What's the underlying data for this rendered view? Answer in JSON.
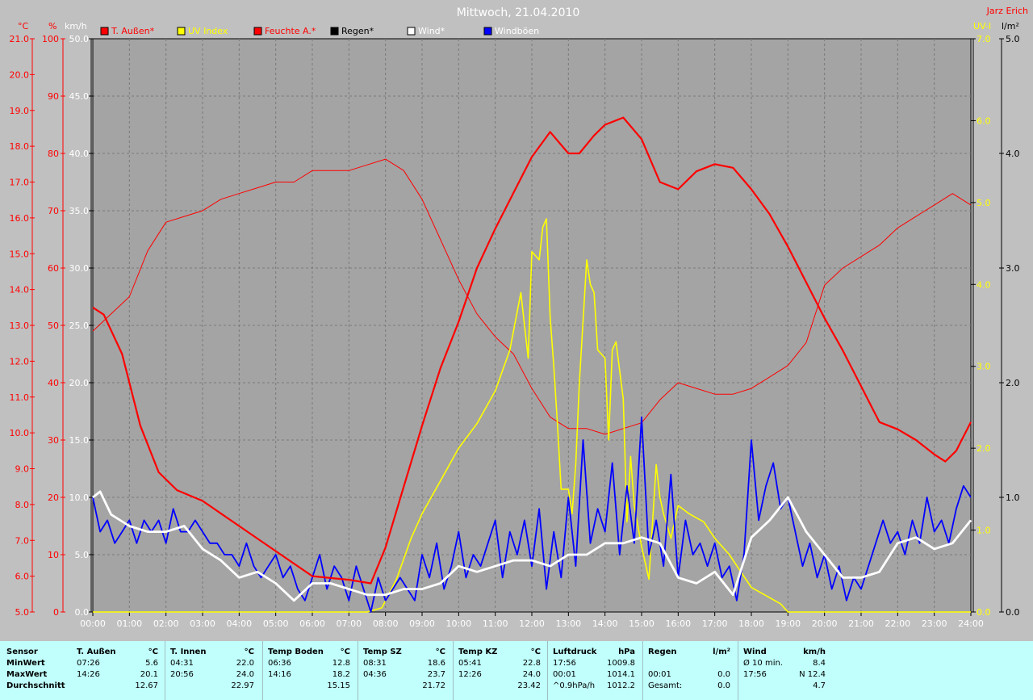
{
  "title": "Mittwoch, 21.04.2010",
  "author": "Jarz Erich",
  "units": {
    "temp": "°C",
    "percent": "%",
    "kmh": "km/h",
    "uvi": "UV-I",
    "lm2": "l/m²"
  },
  "legend": [
    {
      "label": "T. Außen*",
      "color": "#ff0000",
      "text_color": "#ff0000"
    },
    {
      "label": "UV Index",
      "color": "#ffff00",
      "text_color": "#ffff00"
    },
    {
      "label": "Feuchte A.*",
      "color": "#ff0000",
      "text_color": "#ff0000"
    },
    {
      "label": "Regen*",
      "color": "#000000",
      "text_color": "#000000"
    },
    {
      "label": "Wind*",
      "color": "#ffffff",
      "text_color": "#ffffff"
    },
    {
      "label": "Windböen",
      "color": "#0000ff",
      "text_color": "#ffffff"
    }
  ],
  "axes": {
    "temp_ticks": [
      "21.0",
      "20.0",
      "19.0",
      "18.0",
      "17.0",
      "16.0",
      "15.0",
      "14.0",
      "13.0",
      "12.0",
      "11.0",
      "10.0",
      "9.0",
      "8.0",
      "7.0",
      "6.0",
      "5.0"
    ],
    "pct_ticks": [
      "100",
      "90",
      "80",
      "70",
      "60",
      "50",
      "40",
      "30",
      "20",
      "10",
      "0"
    ],
    "kmh_ticks": [
      "50.0",
      "45.0",
      "40.0",
      "35.0",
      "30.0",
      "25.0",
      "20.0",
      "15.0",
      "10.0",
      "5.0",
      "0.0"
    ],
    "uvi_ticks": [
      "7.0",
      "6.0",
      "5.0",
      "4.0",
      "3.0",
      "2.0",
      "1.0",
      "0.0"
    ],
    "rain_ticks": [
      "5.0",
      "4.0",
      "3.0",
      "2.0",
      "1.0",
      "0.0"
    ],
    "x_ticks": [
      "00:00",
      "01:00",
      "02:00",
      "03:00",
      "04:00",
      "05:00",
      "06:00",
      "07:00",
      "08:00",
      "09:00",
      "10:00",
      "11:00",
      "12:00",
      "13:00",
      "14:00",
      "15:00",
      "16:00",
      "17:00",
      "18:00",
      "19:00",
      "20:00",
      "21:00",
      "22:00",
      "23:00",
      "24:00"
    ]
  },
  "colors": {
    "bg": "#c0c0c0",
    "plot_bg": "#a4a4a4",
    "grid": "#7a7a7a",
    "temp": "#ff0000",
    "hum": "#ff0000",
    "uv": "#ffff00",
    "wind": "#ffffff",
    "gust": "#0000ff",
    "stats_bg": "#c0fffc"
  },
  "chart_data": {
    "type": "line",
    "title": "Mittwoch, 21.04.2010",
    "xlabel": "",
    "x_range": [
      0,
      24
    ],
    "grid": true,
    "legend_position": "top",
    "series": [
      {
        "name": "T. Außen*",
        "axis": "°C",
        "ylim": [
          5,
          21
        ],
        "x": [
          0,
          0.3,
          0.8,
          1.3,
          1.8,
          2.3,
          3,
          4,
          5,
          6,
          7,
          7.6,
          8,
          8.5,
          9,
          9.5,
          10,
          10.5,
          11,
          11.5,
          12,
          12.5,
          13,
          13.3,
          13.7,
          14,
          14.5,
          15,
          15.5,
          16,
          16.5,
          17,
          17.5,
          18,
          18.5,
          19,
          19.5,
          20,
          20.5,
          21,
          21.5,
          22,
          22.5,
          23,
          23.3,
          23.6,
          24
        ],
        "values": [
          13.5,
          13.3,
          12.2,
          10.2,
          8.9,
          8.4,
          8.1,
          7.4,
          6.7,
          6.0,
          5.9,
          5.8,
          6.8,
          8.5,
          10.2,
          11.8,
          13.1,
          14.6,
          15.7,
          16.7,
          17.7,
          18.4,
          17.8,
          17.8,
          18.3,
          18.6,
          18.8,
          18.2,
          17.0,
          16.8,
          17.3,
          17.5,
          17.4,
          16.8,
          16.1,
          15.2,
          14.2,
          13.2,
          12.3,
          11.3,
          10.3,
          10.1,
          9.8,
          9.4,
          9.2,
          9.5,
          10.3
        ]
      },
      {
        "name": "Feuchte A.*",
        "axis": "%",
        "ylim": [
          0,
          100
        ],
        "x": [
          0,
          0.5,
          1,
          1.5,
          2,
          2.5,
          3,
          3.5,
          4,
          4.5,
          5,
          5.5,
          6,
          6.5,
          7,
          7.5,
          8,
          8.5,
          9,
          9.5,
          10,
          10.5,
          11,
          11.5,
          12,
          12.5,
          13,
          13.5,
          14,
          14.5,
          15,
          15.5,
          16,
          16.5,
          17,
          17.5,
          18,
          18.5,
          19,
          19.5,
          20,
          20.5,
          21,
          21.5,
          22,
          22.5,
          23,
          23.5,
          24
        ],
        "values": [
          49,
          52,
          55,
          63,
          68,
          69,
          70,
          72,
          73,
          74,
          75,
          75,
          77,
          77,
          77,
          78,
          79,
          77,
          72,
          65,
          58,
          52,
          48,
          45,
          39,
          34,
          32,
          32,
          31,
          32,
          33,
          37,
          40,
          39,
          38,
          38,
          39,
          41,
          43,
          47,
          57,
          60,
          62,
          64,
          67,
          69,
          71,
          73,
          71
        ]
      },
      {
        "name": "UV Index",
        "axis": "UV-I",
        "ylim": [
          0,
          7
        ],
        "x": [
          0,
          7.5,
          7.9,
          8.3,
          8.7,
          9,
          9.5,
          10,
          10.5,
          11,
          11.4,
          11.7,
          11.9,
          12,
          12.2,
          12.3,
          12.4,
          12.5,
          12.6,
          12.7,
          12.8,
          13,
          13.1,
          13.2,
          13.3,
          13.5,
          13.6,
          13.7,
          13.8,
          14,
          14.1,
          14.2,
          14.3,
          14.5,
          14.6,
          14.7,
          14.8,
          15,
          15.2,
          15.4,
          15.5,
          15.6,
          15.8,
          16,
          16.3,
          16.7,
          17,
          17.4,
          17.7,
          18,
          18.4,
          18.8,
          19,
          24
        ],
        "values": [
          0,
          0,
          0.05,
          0.4,
          0.9,
          1.2,
          1.6,
          2.0,
          2.3,
          2.7,
          3.2,
          3.9,
          3.1,
          4.4,
          4.3,
          4.7,
          4.8,
          3.6,
          3.0,
          2.3,
          1.5,
          1.5,
          1.2,
          1.8,
          2.8,
          4.3,
          4.0,
          3.9,
          3.2,
          3.1,
          2.1,
          3.2,
          3.3,
          2.6,
          1.1,
          1.9,
          1.3,
          0.8,
          0.4,
          1.8,
          1.4,
          1.2,
          0.9,
          1.3,
          1.2,
          1.1,
          0.9,
          0.7,
          0.5,
          0.3,
          0.2,
          0.1,
          0,
          0
        ]
      },
      {
        "name": "Wind*",
        "axis": "km/h",
        "ylim": [
          0,
          50
        ],
        "x": [
          0,
          0.2,
          0.5,
          1,
          1.5,
          2,
          2.5,
          3,
          3.5,
          4,
          4.5,
          5,
          5.5,
          6,
          6.5,
          7,
          7.5,
          8,
          8.5,
          9,
          9.5,
          10,
          10.5,
          11,
          11.5,
          12,
          12.5,
          13,
          13.5,
          14,
          14.5,
          15,
          15.5,
          16,
          16.5,
          17,
          17.5,
          18,
          18.5,
          19,
          19.5,
          20,
          20.5,
          21,
          21.5,
          22,
          22.5,
          23,
          23.5,
          24
        ],
        "values": [
          10.0,
          10.5,
          8.5,
          7.5,
          7.0,
          7.0,
          7.5,
          5.5,
          4.5,
          3.0,
          3.5,
          2.5,
          1.0,
          2.5,
          2.5,
          2.0,
          1.5,
          1.5,
          2.0,
          2.0,
          2.5,
          4.0,
          3.5,
          4.0,
          4.5,
          4.5,
          4.0,
          5.0,
          5.0,
          6.0,
          6.0,
          6.5,
          6.0,
          3.0,
          2.5,
          3.5,
          1.5,
          6.5,
          8.0,
          10.0,
          7.0,
          5.0,
          3.0,
          3.0,
          3.5,
          6.0,
          6.5,
          5.5,
          6.0,
          8.0
        ]
      },
      {
        "name": "Windböen",
        "axis": "km/h",
        "ylim": [
          0,
          50
        ],
        "x": [
          0,
          0.2,
          0.4,
          0.6,
          0.8,
          1,
          1.2,
          1.4,
          1.6,
          1.8,
          2,
          2.2,
          2.4,
          2.6,
          2.8,
          3,
          3.2,
          3.4,
          3.6,
          3.8,
          4,
          4.2,
          4.4,
          4.6,
          4.8,
          5,
          5.2,
          5.4,
          5.6,
          5.8,
          6,
          6.2,
          6.4,
          6.6,
          6.8,
          7,
          7.2,
          7.4,
          7.6,
          7.8,
          8,
          8.2,
          8.4,
          8.6,
          8.8,
          9,
          9.2,
          9.4,
          9.6,
          9.8,
          10,
          10.2,
          10.4,
          10.6,
          10.8,
          11,
          11.2,
          11.4,
          11.6,
          11.8,
          12,
          12.2,
          12.4,
          12.6,
          12.8,
          13,
          13.2,
          13.4,
          13.6,
          13.8,
          14,
          14.2,
          14.4,
          14.6,
          14.8,
          15,
          15.2,
          15.4,
          15.6,
          15.8,
          16,
          16.2,
          16.4,
          16.6,
          16.8,
          17,
          17.2,
          17.4,
          17.6,
          17.8,
          18,
          18.2,
          18.4,
          18.6,
          18.8,
          19,
          19.2,
          19.4,
          19.6,
          19.8,
          20,
          20.2,
          20.4,
          20.6,
          20.8,
          21,
          21.2,
          21.4,
          21.6,
          21.8,
          22,
          22.2,
          22.4,
          22.6,
          22.8,
          23,
          23.2,
          23.4,
          23.6,
          23.8,
          24
        ],
        "values": [
          10,
          7,
          8,
          6,
          7,
          8,
          6,
          8,
          7,
          8,
          6,
          9,
          7,
          7,
          8,
          7,
          6,
          6,
          5,
          5,
          4,
          6,
          4,
          3,
          4,
          5,
          3,
          4,
          2,
          1,
          3,
          5,
          2,
          4,
          3,
          1,
          4,
          2,
          0,
          3,
          1,
          2,
          3,
          2,
          1,
          5,
          3,
          6,
          2,
          4,
          7,
          3,
          5,
          4,
          6,
          8,
          3,
          7,
          5,
          8,
          4,
          9,
          2,
          7,
          3,
          10,
          4,
          15,
          6,
          9,
          7,
          13,
          5,
          11,
          6,
          17,
          5,
          8,
          4,
          12,
          3,
          8,
          5,
          6,
          4,
          6,
          3,
          4,
          1,
          5,
          15,
          8,
          11,
          13,
          9,
          10,
          7,
          4,
          6,
          3,
          5,
          2,
          4,
          1,
          3,
          2,
          4,
          6,
          8,
          6,
          7,
          5,
          8,
          6,
          10,
          7,
          8,
          6,
          9,
          11,
          10
        ]
      }
    ]
  },
  "stats": {
    "sensor": {
      "header": "Sensor",
      "rows": [
        "MinWert",
        "MaxWert",
        "Durchschnitt"
      ]
    },
    "columns": [
      {
        "name": "T. Außen",
        "unit": "°C",
        "min_time": "07:26",
        "min": "5.6",
        "max_time": "14:26",
        "max": "20.1",
        "avg_label": "",
        "avg": "12.67"
      },
      {
        "name": "T. Innen",
        "unit": "°C",
        "min_time": "04:31",
        "min": "22.0",
        "max_time": "20:56",
        "max": "24.0",
        "avg_label": "",
        "avg": "22.97"
      },
      {
        "name": "Temp Boden",
        "unit": "°C",
        "min_time": "06:36",
        "min": "12.8",
        "max_time": "14:16",
        "max": "18.2",
        "avg_label": "",
        "avg": "15.15"
      },
      {
        "name": "Temp SZ",
        "unit": "°C",
        "min_time": "08:31",
        "min": "18.6",
        "max_time": "04:36",
        "max": "23.7",
        "avg_label": "",
        "avg": "21.72"
      },
      {
        "name": "Temp KZ",
        "unit": "°C",
        "min_time": "05:41",
        "min": "22.8",
        "max_time": "12:26",
        "max": "24.0",
        "avg_label": "",
        "avg": "23.42"
      },
      {
        "name": "Luftdruck",
        "unit": "hPa",
        "min_time": "17:56",
        "min": "1009.8",
        "max_time": "00:01",
        "max": "1014.1",
        "avg_label": "^0.9hPa/h",
        "avg": "1012.2"
      },
      {
        "name": "Regen",
        "unit": "l/m²",
        "min_time": "",
        "min": "",
        "max_time": "00:01",
        "max": "0.0",
        "avg_label": "Gesamt:",
        "avg": "0.0"
      },
      {
        "name": "Wind",
        "unit": "km/h",
        "min_time": "Ø 10 min.",
        "min": "8.4",
        "max_time": "17:56",
        "max": "N 12.4",
        "avg_label": "",
        "avg": "4.7"
      }
    ]
  }
}
